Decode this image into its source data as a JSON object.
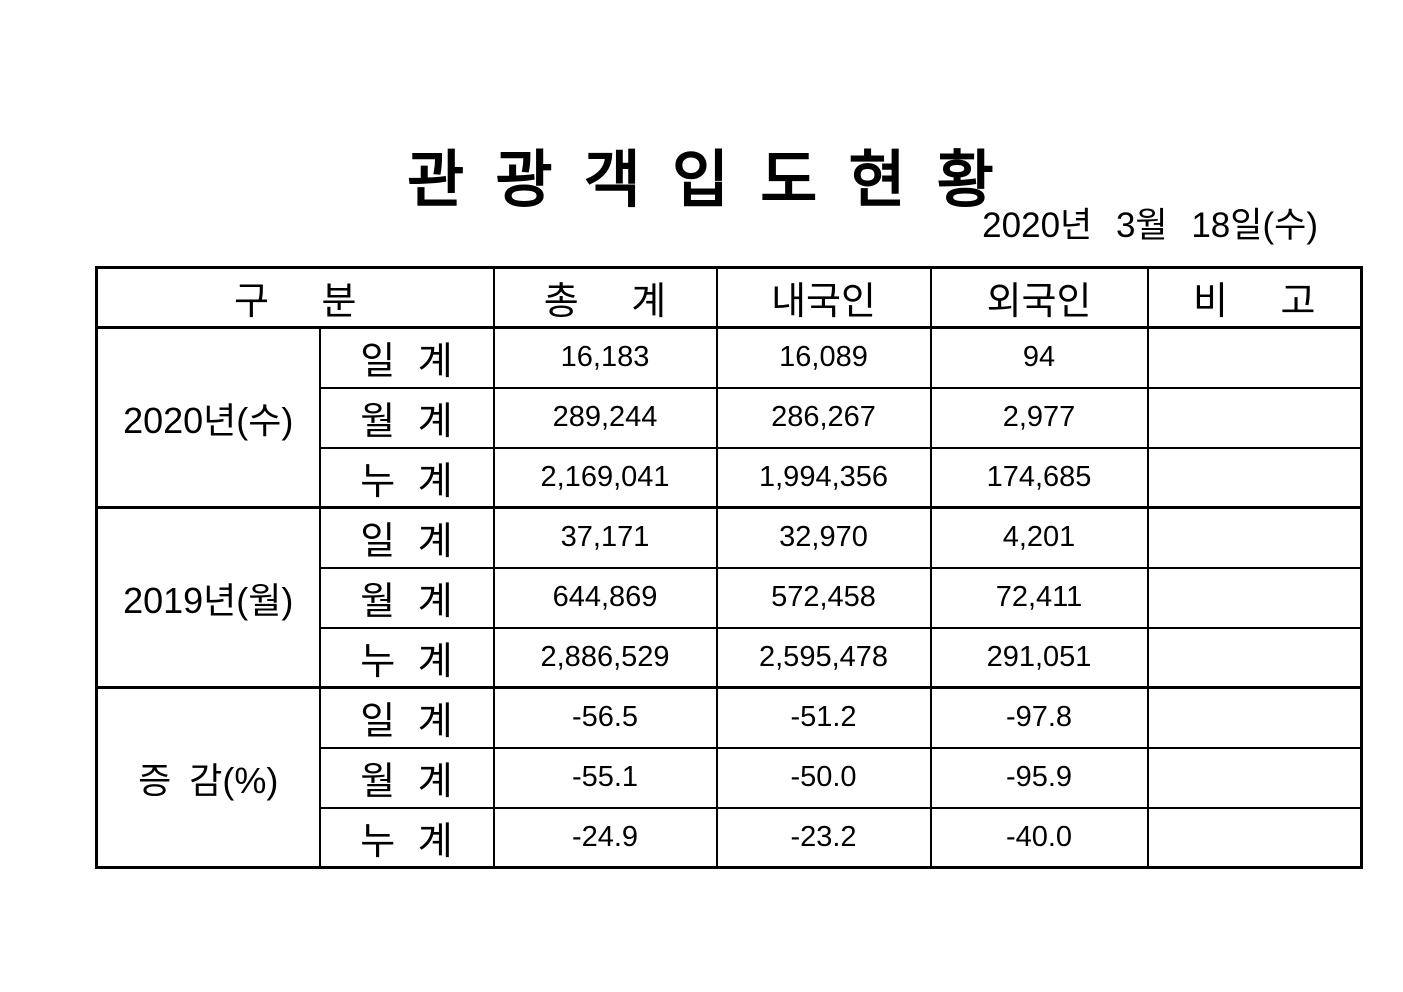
{
  "colors": {
    "text": "#000000",
    "background": "#ffffff",
    "border": "#000000"
  },
  "page": {
    "title": "관 광 객 입 도 현 황",
    "date": "2020년 3월 18일(수)"
  },
  "table": {
    "headers": {
      "category": "구 분",
      "total": "총 계",
      "domestic": "내국인",
      "foreign": "외국인",
      "note": "비 고"
    },
    "groups": [
      {
        "label": "2020년(수)",
        "rows": [
          {
            "label": "일 계",
            "total": "16,183",
            "domestic": "16,089",
            "foreign": "94",
            "note": ""
          },
          {
            "label": "월 계",
            "total": "289,244",
            "domestic": "286,267",
            "foreign": "2,977",
            "note": ""
          },
          {
            "label": "누 계",
            "total": "2,169,041",
            "domestic": "1,994,356",
            "foreign": "174,685",
            "note": ""
          }
        ]
      },
      {
        "label": "2019년(월)",
        "rows": [
          {
            "label": "일 계",
            "total": "37,171",
            "domestic": "32,970",
            "foreign": "4,201",
            "note": ""
          },
          {
            "label": "월 계",
            "total": "644,869",
            "domestic": "572,458",
            "foreign": "72,411",
            "note": ""
          },
          {
            "label": "누 계",
            "total": "2,886,529",
            "domestic": "2,595,478",
            "foreign": "291,051",
            "note": ""
          }
        ]
      },
      {
        "label": "증 감(%)",
        "rows": [
          {
            "label": "일 계",
            "total": "-56.5",
            "domestic": "-51.2",
            "foreign": "-97.8",
            "note": ""
          },
          {
            "label": "월 계",
            "total": "-55.1",
            "domestic": "-50.0",
            "foreign": "-95.9",
            "note": ""
          },
          {
            "label": "누 계",
            "total": "-24.9",
            "domestic": "-23.2",
            "foreign": "-40.0",
            "note": ""
          }
        ]
      }
    ]
  }
}
